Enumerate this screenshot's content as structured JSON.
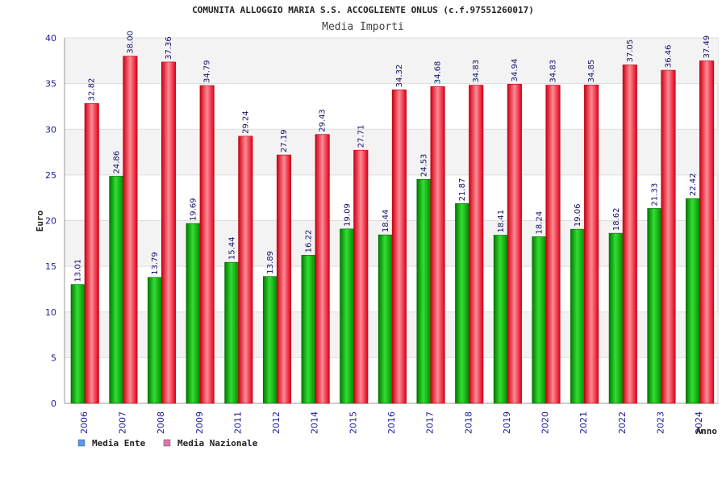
{
  "chart_data": {
    "type": "bar",
    "title": "COMUNITA ALLOGGIO MARIA S.S. ACCOGLIENTE ONLUS (c.f.97551260017)",
    "subtitle": "Media Importi",
    "xlabel": "Anno",
    "ylabel": "Euro",
    "ylim": [
      0,
      40
    ],
    "yticks": [
      0,
      5,
      10,
      15,
      20,
      25,
      30,
      35,
      40
    ],
    "grid": true,
    "legend_position": "bottom-left",
    "categories": [
      "2006",
      "2007",
      "2008",
      "2009",
      "2011",
      "2012",
      "2014",
      "2015",
      "2016",
      "2017",
      "2018",
      "2019",
      "2020",
      "2021",
      "2022",
      "2023",
      "2024"
    ],
    "series": [
      {
        "name": "Media Ente",
        "color": "#00aa00",
        "legend_color": "#5599ee",
        "values": [
          13.01,
          24.86,
          13.79,
          19.69,
          15.44,
          13.89,
          16.22,
          19.09,
          18.44,
          24.53,
          21.87,
          18.41,
          18.24,
          19.06,
          18.62,
          21.33,
          22.42
        ],
        "labels": [
          "13.01",
          "24.86",
          "13.79",
          "19.69",
          "15.44",
          "13.89",
          "16.22",
          "19.09",
          "18.44",
          "24.53",
          "21.87",
          "18.41",
          "18.24",
          "19.06",
          "18.62",
          "21.33",
          "22.42"
        ]
      },
      {
        "name": "Media Nazionale",
        "color": "#ee1122",
        "legend_color": "#dd77aa",
        "values": [
          32.82,
          38.0,
          37.36,
          34.79,
          29.24,
          27.19,
          29.43,
          27.71,
          34.32,
          34.68,
          34.83,
          34.94,
          34.83,
          34.85,
          37.05,
          36.46,
          37.49
        ],
        "labels": [
          "32.82",
          "38.00",
          "37.36",
          "34.79",
          "29.24",
          "27.19",
          "29.43",
          "27.71",
          "34.32",
          "34.68",
          "34.83",
          "34.94",
          "34.83",
          "34.85",
          "37.05",
          "36.46",
          "37.49"
        ]
      }
    ]
  }
}
